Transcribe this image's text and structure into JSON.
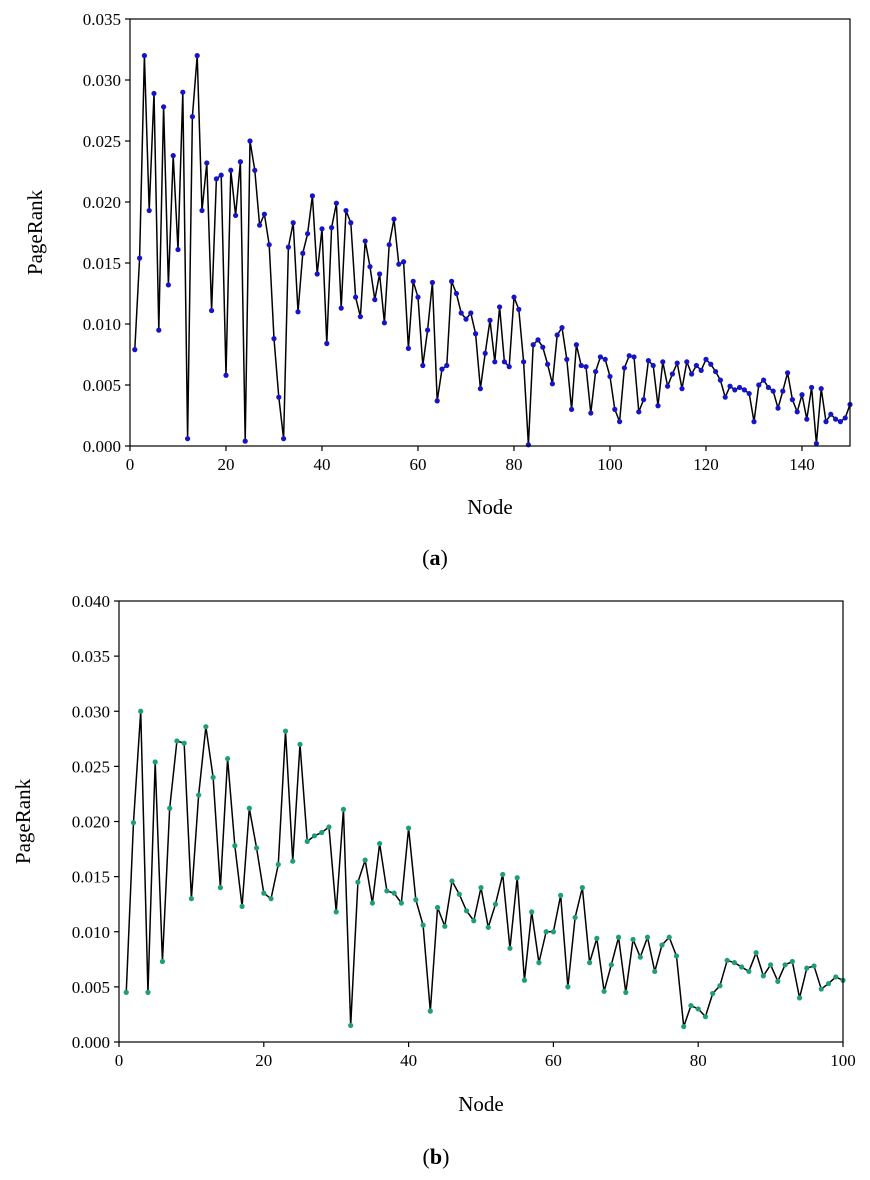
{
  "colors": {
    "line": "#000000",
    "marker_a": "#1414c8",
    "marker_b": "#1e9e78",
    "axis": "#000000"
  },
  "chart_data": [
    {
      "type": "line",
      "caption": {
        "open": "(",
        "letter": "a",
        "close": ")"
      },
      "xlabel": "Node",
      "ylabel": "PageRank",
      "xlim": [
        0,
        150
      ],
      "ylim": [
        0,
        0.035
      ],
      "xticks": [
        0,
        20,
        40,
        60,
        80,
        100,
        120,
        140
      ],
      "xtick_labels": [
        "0",
        "20",
        "40",
        "60",
        "80",
        "100",
        "120",
        "140"
      ],
      "yticks": [
        0,
        0.005,
        0.01,
        0.015,
        0.02,
        0.025,
        0.03,
        0.035
      ],
      "ytick_labels": [
        "0.000",
        "0.005",
        "0.010",
        "0.015",
        "0.020",
        "0.025",
        "0.030",
        "0.035"
      ],
      "grid": false,
      "x_start": 1,
      "values": [
        0.0079,
        0.0154,
        0.032,
        0.0193,
        0.0289,
        0.0095,
        0.0278,
        0.0132,
        0.0238,
        0.0161,
        0.029,
        0.0006,
        0.027,
        0.032,
        0.0193,
        0.0232,
        0.0111,
        0.0219,
        0.0222,
        0.0058,
        0.0226,
        0.0189,
        0.0233,
        0.0004,
        0.025,
        0.0226,
        0.0181,
        0.019,
        0.0165,
        0.0088,
        0.004,
        0.0006,
        0.0163,
        0.0183,
        0.011,
        0.0158,
        0.0174,
        0.0205,
        0.0141,
        0.0178,
        0.0084,
        0.0179,
        0.0199,
        0.0113,
        0.0193,
        0.0183,
        0.0122,
        0.0106,
        0.0168,
        0.0147,
        0.012,
        0.0141,
        0.0101,
        0.0165,
        0.0186,
        0.0149,
        0.0151,
        0.008,
        0.0135,
        0.0122,
        0.0066,
        0.0095,
        0.0134,
        0.0037,
        0.0063,
        0.0066,
        0.0135,
        0.0125,
        0.0109,
        0.0104,
        0.0109,
        0.0092,
        0.0047,
        0.0076,
        0.0103,
        0.0069,
        0.0114,
        0.0069,
        0.0065,
        0.0122,
        0.0112,
        0.0069,
        0.0001,
        0.0083,
        0.0087,
        0.0081,
        0.0067,
        0.0051,
        0.0091,
        0.0097,
        0.0071,
        0.003,
        0.0083,
        0.0066,
        0.0065,
        0.0027,
        0.0061,
        0.0073,
        0.0071,
        0.0057,
        0.003,
        0.002,
        0.0064,
        0.0074,
        0.0073,
        0.0028,
        0.0038,
        0.007,
        0.0066,
        0.0033,
        0.0069,
        0.0049,
        0.0059,
        0.0068,
        0.0047,
        0.0069,
        0.0059,
        0.0066,
        0.0062,
        0.0071,
        0.0067,
        0.0061,
        0.0054,
        0.004,
        0.0049,
        0.0046,
        0.0048,
        0.0046,
        0.0043,
        0.002,
        0.005,
        0.0054,
        0.0048,
        0.0045,
        0.0031,
        0.0045,
        0.006,
        0.0038,
        0.0028,
        0.0042,
        0.0022,
        0.0048,
        0.0002,
        0.0047,
        0.002,
        0.0026,
        0.0022,
        0.002,
        0.0023,
        0.0034
      ]
    },
    {
      "type": "line",
      "caption": {
        "open": "(",
        "letter": "b",
        "close": ")"
      },
      "xlabel": "Node",
      "ylabel": "PageRank",
      "xlim": [
        0,
        100
      ],
      "ylim": [
        0,
        0.04
      ],
      "xticks": [
        0,
        20,
        40,
        60,
        80,
        100
      ],
      "xtick_labels": [
        "0",
        "20",
        "40",
        "60",
        "80",
        "100"
      ],
      "yticks": [
        0,
        0.005,
        0.01,
        0.015,
        0.02,
        0.025,
        0.03,
        0.035,
        0.04
      ],
      "ytick_labels": [
        "0.000",
        "0.005",
        "0.010",
        "0.015",
        "0.020",
        "0.025",
        "0.030",
        "0.035",
        "0.040"
      ],
      "grid": false,
      "x_start": 1,
      "values": [
        0.0045,
        0.0199,
        0.03,
        0.0045,
        0.0254,
        0.0073,
        0.0212,
        0.0273,
        0.0271,
        0.013,
        0.0224,
        0.0286,
        0.024,
        0.014,
        0.0257,
        0.0178,
        0.0123,
        0.0212,
        0.0176,
        0.0135,
        0.013,
        0.0161,
        0.0282,
        0.0164,
        0.027,
        0.0182,
        0.0187,
        0.019,
        0.0195,
        0.0118,
        0.0211,
        0.0015,
        0.0145,
        0.0165,
        0.0126,
        0.018,
        0.0137,
        0.0135,
        0.0126,
        0.0194,
        0.0129,
        0.0106,
        0.0028,
        0.0122,
        0.0105,
        0.0146,
        0.0134,
        0.0119,
        0.011,
        0.014,
        0.0104,
        0.0125,
        0.0152,
        0.0085,
        0.0149,
        0.0056,
        0.0118,
        0.0072,
        0.01,
        0.01,
        0.0133,
        0.005,
        0.0113,
        0.014,
        0.0072,
        0.0094,
        0.0046,
        0.007,
        0.0095,
        0.0045,
        0.0093,
        0.0077,
        0.0095,
        0.0064,
        0.0088,
        0.0095,
        0.0078,
        0.0014,
        0.0033,
        0.003,
        0.0023,
        0.0044,
        0.0051,
        0.0074,
        0.0072,
        0.0068,
        0.0064,
        0.0081,
        0.006,
        0.007,
        0.0055,
        0.007,
        0.0073,
        0.004,
        0.0067,
        0.0069,
        0.0048,
        0.0053,
        0.0059,
        0.0056
      ]
    }
  ]
}
